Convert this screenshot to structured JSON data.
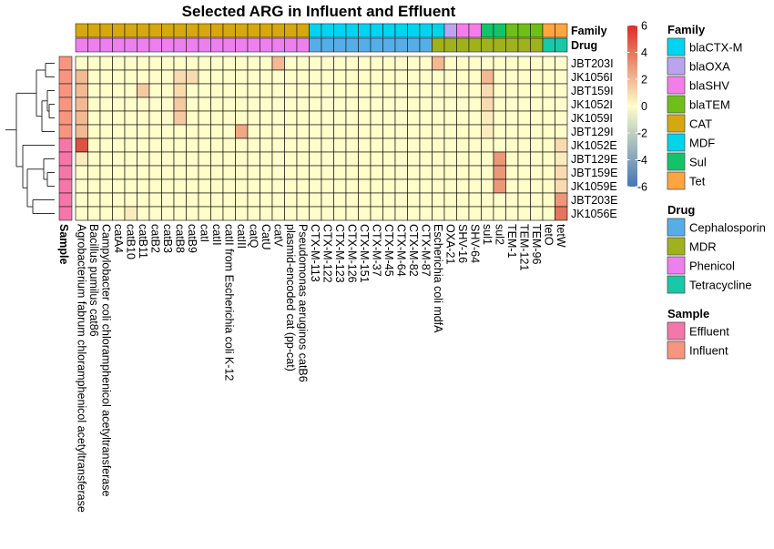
{
  "chart_data": {
    "type": "heatmap",
    "title": "Selected ARG in Influent and Effluent",
    "columns": [
      "Agrobacterium fabrum chloramphenicol acetyltransferase",
      "Bacillus pumilus cat86",
      "Campylobacter coli chloramphenicol acetyltransferase",
      "catA4",
      "catB10",
      "catB11",
      "catB2",
      "catB3",
      "catB8",
      "catB9",
      "catI",
      "catII",
      "catII from Escherichia coli K-12",
      "catIII",
      "catQ",
      "CatU",
      "catV",
      "plasmid-encoded cat (pp-cat)",
      "Pseudomonas aeruginos catB6",
      "CTX-M-113",
      "CTX-M-122",
      "CTX-M-123",
      "CTX-M-126",
      "CTX-M-151",
      "CTX-M-37",
      "CTX-M-45",
      "CTX-M-64",
      "CTX-M-82",
      "CTX-M-87",
      "Escherichia coli mdfA",
      "OXA-21",
      "SHV-16",
      "SHV-64",
      "sul1",
      "sul2",
      "TEM-1",
      "TEM-121",
      "TEM-96",
      "tetO",
      "tetW"
    ],
    "rows": [
      "JBT203I",
      "JK1056I",
      "JBT159I",
      "JK1052I",
      "JK1059I",
      "JBT129I",
      "JK1052E",
      "JBT129E",
      "JBT159E",
      "JK1059E",
      "JBT203E",
      "JK1056E"
    ],
    "values": [
      [
        0,
        0,
        0,
        0,
        0,
        0,
        0,
        0,
        0,
        0,
        0,
        0,
        0,
        0,
        0,
        0,
        2,
        0,
        0,
        0,
        0,
        0,
        0,
        0,
        0,
        0,
        0,
        0,
        0,
        2,
        0,
        0,
        0,
        0,
        0,
        0,
        0,
        0,
        0,
        0
      ],
      [
        2,
        0,
        0,
        0,
        0,
        0,
        0,
        0,
        1,
        1,
        0,
        0,
        0,
        0,
        0,
        0,
        0,
        0,
        0,
        0,
        0,
        0,
        0,
        0,
        0,
        0,
        0,
        0,
        0,
        0,
        0,
        0,
        0,
        2,
        0,
        0,
        0,
        0,
        0,
        0
      ],
      [
        2,
        0,
        0,
        0,
        0,
        1.5,
        0,
        0,
        1,
        0,
        0,
        0,
        0,
        0,
        0,
        0,
        0,
        0,
        0,
        0,
        0,
        0,
        0,
        0,
        0,
        0,
        0,
        0,
        0,
        0,
        0,
        0,
        0,
        1,
        0,
        0,
        0,
        0,
        0,
        0
      ],
      [
        2,
        0,
        0,
        0,
        0,
        0,
        0,
        0,
        1.5,
        0,
        0,
        0,
        0,
        0,
        0,
        0,
        0,
        0,
        0,
        0,
        0,
        0,
        0,
        0,
        0,
        0,
        0,
        0,
        0,
        0,
        0,
        0,
        0,
        1,
        0,
        0,
        0,
        0,
        0,
        0
      ],
      [
        2,
        0,
        0,
        0,
        0,
        0,
        0,
        0,
        1.5,
        0,
        0,
        0,
        0,
        0,
        0,
        0,
        0,
        0,
        0,
        0,
        0,
        0,
        0,
        0,
        0,
        0,
        0,
        0,
        0,
        0,
        0,
        0,
        0,
        0.5,
        0,
        0,
        0,
        0,
        0,
        0
      ],
      [
        2,
        0,
        0,
        0,
        0,
        0,
        0,
        0,
        0,
        0,
        0,
        0,
        0,
        2.5,
        0,
        0,
        0,
        0,
        0,
        0,
        0,
        0,
        0,
        0,
        0,
        0,
        0,
        0,
        0,
        0,
        0,
        0,
        0,
        0.5,
        0,
        0,
        0,
        0,
        0,
        0
      ],
      [
        5,
        0,
        0,
        0,
        0,
        0,
        0,
        0,
        0,
        0,
        0,
        0,
        0,
        0,
        0,
        0,
        0,
        0,
        0,
        0,
        0,
        0,
        0,
        0,
        0,
        0,
        0,
        0,
        0,
        0,
        0,
        0,
        0,
        0,
        0,
        0,
        0,
        0,
        0,
        1
      ],
      [
        0.5,
        0,
        0,
        0,
        0,
        0,
        0,
        0,
        0,
        0,
        0,
        0,
        0,
        0,
        0,
        0,
        0,
        0,
        0,
        0,
        0,
        0,
        0,
        0,
        0,
        0,
        0,
        0,
        0,
        0,
        0,
        0,
        0,
        0,
        3,
        0,
        0,
        0,
        0,
        0.5
      ],
      [
        0,
        0,
        0,
        0,
        0,
        0,
        0,
        0,
        0,
        0,
        0,
        0,
        0,
        0,
        0,
        0,
        0,
        0,
        0,
        0,
        0,
        0,
        0,
        0,
        0,
        0,
        0,
        0,
        0,
        0,
        0,
        0,
        0,
        0,
        3,
        0,
        0,
        0,
        0,
        1
      ],
      [
        0,
        0,
        0,
        0,
        0,
        0,
        0,
        0,
        0,
        0,
        0,
        0,
        0,
        0,
        0,
        0,
        0,
        0,
        0,
        0,
        0,
        0,
        0,
        0,
        0,
        0,
        0,
        0,
        0,
        0,
        0,
        0,
        0,
        0,
        3,
        0,
        0,
        0,
        0,
        1
      ],
      [
        0,
        0,
        0,
        0,
        0,
        0,
        0,
        0,
        0,
        0,
        0,
        0,
        0,
        0,
        0,
        0,
        0,
        0,
        0,
        0,
        0,
        0,
        0,
        0,
        0,
        0,
        0,
        0,
        0,
        0,
        0,
        0,
        0,
        0,
        0,
        0,
        0,
        0,
        0,
        3
      ],
      [
        0,
        0,
        0,
        0,
        0.5,
        0,
        0,
        0,
        0,
        0,
        0,
        0,
        0,
        0,
        0,
        0,
        0,
        0,
        0,
        0,
        0,
        0,
        0,
        0,
        0,
        0,
        0,
        0,
        0,
        0,
        0,
        0,
        0,
        0,
        0,
        0,
        0,
        0,
        0,
        4
      ]
    ],
    "color_scale": {
      "min": -6,
      "max": 6,
      "ticks": [
        "6",
        "4",
        "2",
        "0",
        "-2",
        "-4",
        "-6"
      ],
      "colors": [
        "#4575b4",
        "#fffdc9",
        "#d73027"
      ]
    },
    "annotations": {
      "family_label": "Family",
      "drug_label": "Drug",
      "sample_label": "Sample",
      "family": [
        "CAT",
        "CAT",
        "CAT",
        "CAT",
        "CAT",
        "CAT",
        "CAT",
        "CAT",
        "CAT",
        "CAT",
        "CAT",
        "CAT",
        "CAT",
        "CAT",
        "CAT",
        "CAT",
        "CAT",
        "CAT",
        "CAT",
        "blaCTX-M",
        "blaCTX-M",
        "blaCTX-M",
        "blaCTX-M",
        "blaCTX-M",
        "blaCTX-M",
        "blaCTX-M",
        "blaCTX-M",
        "blaCTX-M",
        "blaCTX-M",
        "MDF",
        "blaOXA",
        "blaSHV",
        "blaSHV",
        "Sul",
        "Sul",
        "blaTEM",
        "blaTEM",
        "blaTEM",
        "Tet",
        "Tet"
      ],
      "drug": [
        "Phenicol",
        "Phenicol",
        "Phenicol",
        "Phenicol",
        "Phenicol",
        "Phenicol",
        "Phenicol",
        "Phenicol",
        "Phenicol",
        "Phenicol",
        "Phenicol",
        "Phenicol",
        "Phenicol",
        "Phenicol",
        "Phenicol",
        "Phenicol",
        "Phenicol",
        "Phenicol",
        "Phenicol",
        "Cephalosporin",
        "Cephalosporin",
        "Cephalosporin",
        "Cephalosporin",
        "Cephalosporin",
        "Cephalosporin",
        "Cephalosporin",
        "Cephalosporin",
        "Cephalosporin",
        "Cephalosporin",
        "MDR",
        "MDR",
        "MDR",
        "MDR",
        "MDR",
        "MDR",
        "MDR",
        "MDR",
        "MDR",
        "Tetracycline",
        "Tetracycline"
      ],
      "sample": [
        "Influent",
        "Influent",
        "Influent",
        "Influent",
        "Influent",
        "Influent",
        "Effluent",
        "Effluent",
        "Effluent",
        "Effluent",
        "Effluent",
        "Effluent"
      ]
    },
    "legends": [
      {
        "title": "Family",
        "items": [
          {
            "label": "blaCTX-M",
            "color": "#00d4ee"
          },
          {
            "label": "blaOXA",
            "color": "#bba4ee"
          },
          {
            "label": "blaSHV",
            "color": "#f27fe7"
          },
          {
            "label": "blaTEM",
            "color": "#6fbf17"
          },
          {
            "label": "CAT",
            "color": "#d4a80e"
          },
          {
            "label": "MDF",
            "color": "#00d4e8"
          },
          {
            "label": "Sul",
            "color": "#11c46a"
          },
          {
            "label": "Tet",
            "color": "#ffa53f"
          }
        ]
      },
      {
        "title": "Drug",
        "items": [
          {
            "label": "Cephalosporin",
            "color": "#55aee8"
          },
          {
            "label": "MDR",
            "color": "#9fb21b"
          },
          {
            "label": "Phenicol",
            "color": "#ee80ee"
          },
          {
            "label": "Tetracycline",
            "color": "#17c9a6"
          }
        ]
      },
      {
        "title": "Sample",
        "items": [
          {
            "label": "Effluent",
            "color": "#f576a8"
          },
          {
            "label": "Influent",
            "color": "#f79580"
          }
        ]
      }
    ]
  }
}
